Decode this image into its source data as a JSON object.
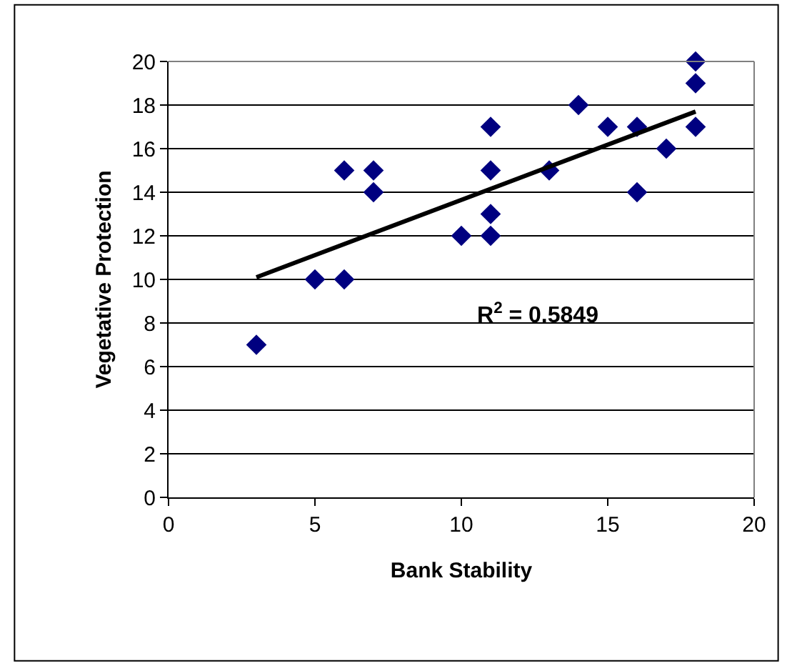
{
  "chart_data": {
    "type": "scatter",
    "xlabel": "Bank Stability",
    "ylabel": "Vegetative Protection",
    "x": [
      3,
      5,
      6,
      6,
      7,
      7,
      10,
      11,
      11,
      11,
      11,
      13,
      14,
      15,
      16,
      16,
      17,
      18,
      18,
      18
    ],
    "series": [
      {
        "color": "#000080",
        "marker": "diamond",
        "values": [
          7,
          10,
          10,
          15,
          15,
          14,
          12,
          12,
          13,
          15,
          17,
          15,
          18,
          17,
          17,
          14,
          16,
          20,
          19,
          17
        ]
      },
      {
        "type": "line",
        "color": "#000000",
        "x": [
          3,
          18
        ],
        "values": [
          10.1,
          17.7
        ]
      }
    ],
    "annotations": [
      "R$^{2}$ = 0.5849"
    ],
    "xlim": [
      0,
      20
    ],
    "xticks": [
      0,
      5,
      10,
      15,
      20
    ],
    "ylim": [
      0,
      20
    ],
    "yticks": [
      0,
      2,
      4,
      6,
      8,
      10,
      12,
      14,
      16,
      18,
      20
    ],
    "grid": "y",
    "legend": false
  }
}
